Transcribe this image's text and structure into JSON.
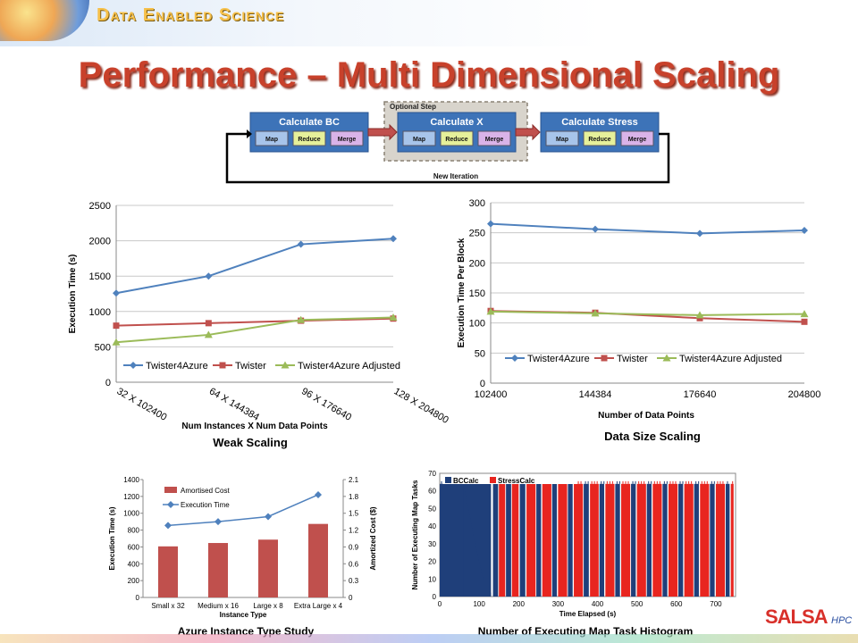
{
  "header": {
    "brand": "Data Enabled Science",
    "title": "Performance – Multi Dimensional Scaling"
  },
  "flow": {
    "optional_label": "Optional Step",
    "loop_label": "New Iteration",
    "stages": [
      {
        "title": "Calculate BC",
        "steps": [
          "Map",
          "Reduce",
          "Merge"
        ]
      },
      {
        "title": "Calculate X",
        "steps": [
          "Map",
          "Reduce",
          "Merge"
        ]
      },
      {
        "title": "Calculate Stress",
        "steps": [
          "Map",
          "Reduce",
          "Merge"
        ]
      }
    ]
  },
  "captions": {
    "weak": "Weak Scaling",
    "datasize": "Data Size Scaling",
    "azure": "Azure Instance Type Study",
    "histogram": "Number of Executing Map Task Histogram"
  },
  "logo": {
    "text": "SALSA",
    "sub": "HPC"
  },
  "colors": {
    "blue": "#4f81bd",
    "red": "#c0504d",
    "green": "#9bbb59",
    "navy": "#1f3f7a",
    "bright_red": "#e8251f"
  },
  "chart_data": [
    {
      "type": "line",
      "ylabel": "Execution Time (s)",
      "xlabel": "Num Instances X Num Data Points",
      "categories": [
        "32 X 102400",
        "64 X 144384",
        "96 X 176640",
        "128 X 204800"
      ],
      "ylim": [
        0,
        2500
      ],
      "yticks": [
        0,
        500,
        1000,
        1500,
        2000,
        2500
      ],
      "grid": true,
      "legend": "bottom",
      "series": [
        {
          "name": "Twister4Azure",
          "values": [
            1260,
            1500,
            1950,
            2030
          ],
          "color": "#4f81bd",
          "marker": "diamond"
        },
        {
          "name": "Twister",
          "values": [
            800,
            835,
            870,
            900
          ],
          "color": "#c0504d",
          "marker": "square"
        },
        {
          "name": "Twister4Azure Adjusted",
          "values": [
            565,
            670,
            880,
            915
          ],
          "color": "#9bbb59",
          "marker": "triangle"
        }
      ]
    },
    {
      "type": "line",
      "ylabel": "Execution Time Per Block",
      "xlabel": "Number of Data Points",
      "categories": [
        "102400",
        "144384",
        "176640",
        "204800"
      ],
      "ylim": [
        0,
        300
      ],
      "yticks": [
        0,
        50,
        100,
        150,
        200,
        250,
        300
      ],
      "grid": true,
      "legend": "bottom",
      "series": [
        {
          "name": "Twister4Azure",
          "values": [
            265,
            256,
            249,
            254
          ],
          "color": "#4f81bd",
          "marker": "diamond"
        },
        {
          "name": "Twister",
          "values": [
            120,
            117,
            108,
            102
          ],
          "color": "#c0504d",
          "marker": "square"
        },
        {
          "name": "Twister4Azure Adjusted",
          "values": [
            119,
            116,
            113,
            115
          ],
          "color": "#9bbb59",
          "marker": "triangle"
        }
      ]
    },
    {
      "type": "bar",
      "ylabel": "Execution Time (s)",
      "y2label": "Amortized Cost ($)",
      "xlabel": "Instance Type",
      "categories": [
        "Small x 32",
        "Medium x 16",
        "Large x 8",
        "Extra Large x 4"
      ],
      "ylim": [
        0,
        1400
      ],
      "yticks": [
        0,
        200,
        400,
        600,
        800,
        1000,
        1200,
        1400
      ],
      "y2lim": [
        0,
        2.1
      ],
      "y2ticks": [
        "0",
        "0.3",
        "0.6",
        "0.9",
        "1.2",
        "1.5",
        "1.8",
        "2.1"
      ],
      "legend": "top-left",
      "series": [
        {
          "name": "Amortised Cost",
          "values": [
            0.91,
            0.97,
            1.03,
            1.31
          ],
          "axis": "y2",
          "kind": "bar",
          "color": "#c0504d"
        },
        {
          "name": "Execution Time",
          "values": [
            855,
            900,
            960,
            1220
          ],
          "axis": "y",
          "kind": "line",
          "color": "#4f81bd"
        }
      ]
    },
    {
      "type": "bar",
      "ylabel": "Number of Executing Map Tasks",
      "xlabel": "Time Elapsed (s)",
      "xlim": [
        0,
        750
      ],
      "xticks": [
        0,
        100,
        200,
        300,
        400,
        500,
        600,
        700
      ],
      "ylim": [
        0,
        70
      ],
      "yticks": [
        0,
        10,
        20,
        30,
        40,
        50,
        60,
        70
      ],
      "legend": "top-left",
      "series": [
        {
          "name": "BCCalc",
          "color": "#1f3f7a",
          "blocks": [
            [
              0,
              130
            ],
            [
              135,
              148
            ],
            [
              168,
              181
            ],
            [
              203,
              217
            ],
            [
              245,
              257
            ],
            [
              285,
              297
            ],
            [
              325,
              337
            ],
            [
              365,
              378
            ],
            [
              405,
              417
            ],
            [
              445,
              457
            ],
            [
              485,
              497
            ],
            [
              525,
              537
            ],
            [
              565,
              577
            ],
            [
              605,
              617
            ],
            [
              645,
              657
            ],
            [
              685,
              697
            ],
            [
              725,
              735
            ]
          ],
          "level": 64,
          "tail_end": 130
        },
        {
          "name": "StressCalc",
          "color": "#e8251f",
          "blocks": [
            [
              150,
              166
            ],
            [
              183,
              200
            ],
            [
              220,
              243
            ],
            [
              260,
              283
            ],
            [
              300,
              323
            ],
            [
              340,
              363
            ],
            [
              381,
              403
            ],
            [
              420,
              443
            ],
            [
              460,
              483
            ],
            [
              500,
              523
            ],
            [
              540,
              563
            ],
            [
              580,
              603
            ],
            [
              620,
              643
            ],
            [
              660,
              683
            ],
            [
              700,
              723
            ],
            [
              738,
              745
            ]
          ],
          "level": 64
        }
      ]
    }
  ]
}
